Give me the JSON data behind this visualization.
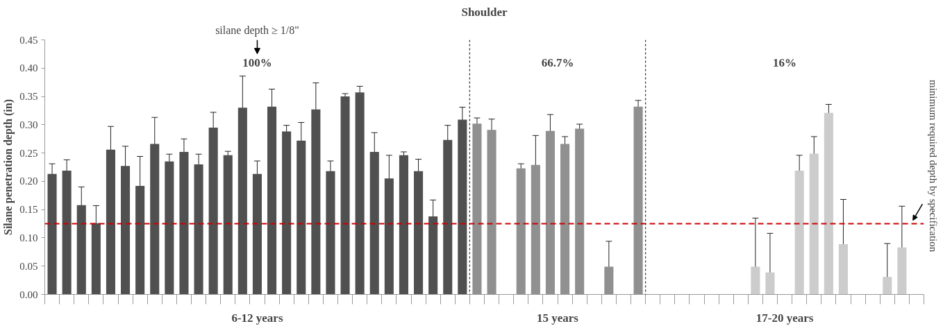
{
  "chart_data": {
    "type": "bar",
    "title": "Shoulder",
    "ylabel": "Silane penetration depth (in)",
    "categories": [
      null,
      null,
      null,
      null,
      null,
      null,
      null,
      null,
      null,
      null,
      null,
      null,
      null,
      null,
      null,
      null,
      null,
      null,
      null,
      null,
      null,
      null,
      null,
      null,
      null,
      null,
      null,
      null,
      null,
      null,
      null,
      null,
      null,
      null,
      null,
      null,
      null,
      null,
      null,
      null,
      null,
      null,
      null,
      null,
      null,
      null,
      null,
      null,
      null,
      null,
      null,
      null,
      null,
      null,
      null,
      null,
      null,
      null,
      null,
      null
    ],
    "ylim": [
      0,
      0.45
    ],
    "yticks": [
      {
        "value": 0,
        "label": "0.00"
      },
      {
        "value": 0.05,
        "label": "0.05"
      },
      {
        "value": 0.1,
        "label": "0.10"
      },
      {
        "value": 0.15,
        "label": "0.15"
      },
      {
        "value": 0.2,
        "label": "0.20"
      },
      {
        "value": 0.25,
        "label": "0.25"
      },
      {
        "value": 0.3,
        "label": "0.30"
      },
      {
        "value": 0.35,
        "label": "0.35"
      },
      {
        "value": 0.4,
        "label": "0.40"
      },
      {
        "value": 0.45,
        "label": "0.45"
      }
    ],
    "tick_labels": "y",
    "grid": false,
    "series": [
      {
        "color": "#505050",
        "values": [
          0.213,
          0.219,
          0.158,
          0.126,
          0.256,
          0.227,
          0.192,
          0.266,
          0.235,
          0.252,
          0.23,
          0.295,
          0.246,
          0.33,
          0.213,
          0.332,
          0.288,
          0.272,
          0.327,
          0.218,
          0.35,
          0.357,
          0.252,
          0.205,
          0.246,
          0.218,
          0.138,
          0.273,
          0.309,
          null,
          null,
          null,
          null,
          null,
          null,
          null,
          null,
          null,
          null,
          null,
          null,
          null,
          null,
          null,
          null,
          null,
          null,
          null,
          null,
          null,
          null,
          null,
          null,
          null,
          null,
          null,
          null,
          null,
          null,
          null
        ],
        "errors": [
          0.018,
          0.019,
          0.032,
          0.031,
          0.041,
          0.035,
          0.052,
          0.047,
          0.013,
          0.023,
          0.018,
          0.027,
          0.007,
          0.056,
          0.023,
          0.031,
          0.011,
          0.032,
          0.047,
          0.018,
          0.005,
          0.011,
          0.034,
          0.041,
          0.006,
          0.021,
          0.029,
          0.026,
          0.022,
          null,
          null,
          null,
          null,
          null,
          null,
          null,
          null,
          null,
          null,
          null,
          null,
          null,
          null,
          null,
          null,
          null,
          null,
          null,
          null,
          null,
          null,
          null,
          null,
          null,
          null,
          null,
          null,
          null,
          null,
          null
        ]
      },
      {
        "color": "#909090",
        "values": [
          null,
          null,
          null,
          null,
          null,
          null,
          null,
          null,
          null,
          null,
          null,
          null,
          null,
          null,
          null,
          null,
          null,
          null,
          null,
          null,
          null,
          null,
          null,
          null,
          null,
          null,
          null,
          null,
          null,
          0.302,
          0.291,
          null,
          0.223,
          0.229,
          0.289,
          0.266,
          0.293,
          null,
          0.049,
          null,
          0.332,
          null,
          null,
          null,
          null,
          null,
          null,
          null,
          null,
          null,
          null,
          null,
          null,
          null,
          null,
          null,
          null,
          null,
          null,
          null
        ],
        "errors": [
          null,
          null,
          null,
          null,
          null,
          null,
          null,
          null,
          null,
          null,
          null,
          null,
          null,
          null,
          null,
          null,
          null,
          null,
          null,
          null,
          null,
          null,
          null,
          null,
          null,
          null,
          null,
          null,
          null,
          0.01,
          0.019,
          null,
          0.008,
          0.052,
          0.029,
          0.013,
          0.008,
          null,
          0.045,
          null,
          0.011,
          null,
          null,
          null,
          null,
          null,
          null,
          null,
          null,
          null,
          null,
          null,
          null,
          null,
          null,
          null,
          null,
          null,
          null,
          null
        ]
      },
      {
        "color": "#cccccc",
        "values": [
          null,
          null,
          null,
          null,
          null,
          null,
          null,
          null,
          null,
          null,
          null,
          null,
          null,
          null,
          null,
          null,
          null,
          null,
          null,
          null,
          null,
          null,
          null,
          null,
          null,
          null,
          null,
          null,
          null,
          null,
          null,
          null,
          null,
          null,
          null,
          null,
          null,
          null,
          null,
          null,
          null,
          null,
          null,
          null,
          null,
          null,
          null,
          null,
          0.049,
          0.039,
          null,
          0.219,
          0.249,
          0.321,
          0.089,
          null,
          null,
          0.031,
          0.083,
          null
        ],
        "errors": [
          null,
          null,
          null,
          null,
          null,
          null,
          null,
          null,
          null,
          null,
          null,
          null,
          null,
          null,
          null,
          null,
          null,
          null,
          null,
          null,
          null,
          null,
          null,
          null,
          null,
          null,
          null,
          null,
          null,
          null,
          null,
          null,
          null,
          null,
          null,
          null,
          null,
          null,
          null,
          null,
          null,
          null,
          null,
          null,
          null,
          null,
          null,
          null,
          [
            0,
            0.135
          ],
          [
            0,
            0.108
          ],
          null,
          0.027,
          0.03,
          0.015,
          0.079,
          null,
          null,
          [
            0,
            0.09
          ],
          0.073,
          null
        ]
      }
    ],
    "ref_lines": [
      {
        "axis": "y",
        "value": 0.125,
        "label": "minimum required  depth by specification",
        "color": "#cc0000",
        "line_style": "dashed"
      }
    ],
    "annotations": [
      "silane depth ≥ 1/8\"",
      "100%",
      "66.7%",
      "16%",
      "6-12 years",
      "15 years",
      "17-20 years"
    ]
  }
}
